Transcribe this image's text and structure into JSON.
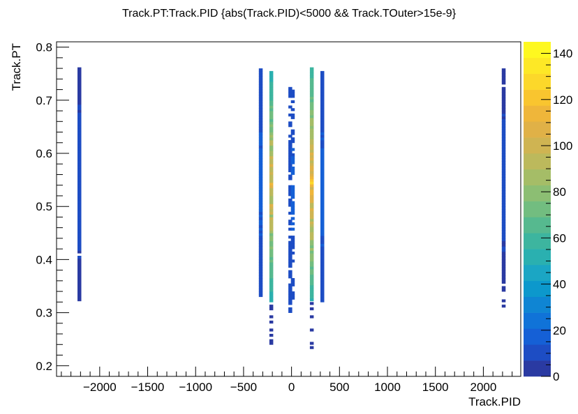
{
  "chart_data": {
    "type": "heatmap",
    "title": "Track.PT:Track.PID {abs(Track.PID)<5000 && Track.TOuter>15e-9}",
    "xlabel": "Track.PID",
    "ylabel": "Track.PT",
    "xlim": [
      -2450,
      2390
    ],
    "ylim": [
      0.18,
      0.81
    ],
    "xticks": [
      -2000,
      -1500,
      -1000,
      -500,
      0,
      500,
      1000,
      1500,
      2000
    ],
    "xtick_labels": [
      "−2000",
      "−1500",
      "−1000",
      "−500",
      "0",
      "500",
      "1000",
      "1500",
      "2000"
    ],
    "yticks": [
      0.2,
      0.3,
      0.4,
      0.5,
      0.6,
      0.7,
      0.8
    ],
    "ytick_labels": [
      "0.2",
      "0.3",
      "0.4",
      "0.5",
      "0.6",
      "0.7",
      "0.8"
    ],
    "colorbar": {
      "range": [
        0,
        145
      ],
      "ticks": [
        0,
        20,
        40,
        60,
        80,
        100,
        120,
        140
      ],
      "tick_labels": [
        "0",
        "20",
        "40",
        "60",
        "80",
        "100",
        "120",
        "140"
      ],
      "colors": [
        "#2a3aa2",
        "#1d4dc4",
        "#1560d6",
        "#1073d8",
        "#0f85d3",
        "#0c98cc",
        "#1ba6c4",
        "#2ab0b0",
        "#3db59f",
        "#56b98f",
        "#72bd80",
        "#8cbe73",
        "#a5bd67",
        "#bcb95c",
        "#cfb452",
        "#e0b147",
        "#efb63a",
        "#f9c52f",
        "#fcd82a",
        "#fde826",
        "#fef820"
      ],
      "grid": false
    },
    "cell_size": {
      "x": 40,
      "y": 0.005
    },
    "columns": [
      {
        "pid": -2212,
        "pt": [
          0.322,
          0.76
        ],
        "base": 5,
        "peak": 10,
        "gaps": [
          0.405,
          0.411
        ]
      },
      {
        "pid": -321,
        "pt": [
          0.33,
          0.758
        ],
        "base": 8,
        "peak": 18,
        "gaps": []
      },
      {
        "pid": -211,
        "pt": [
          0.32,
          0.752
        ],
        "base": 50,
        "peak": 105,
        "gaps": [],
        "tail": [
          0.305,
          0.31,
          0.29,
          0.28,
          0.265,
          0.255,
          0.245,
          0.24
        ]
      },
      {
        "pid": -13,
        "pt": [
          0.3,
          0.722
        ],
        "base": 8,
        "peak": 12,
        "sparse": true
      },
      {
        "pid": 13,
        "pt": [
          0.325,
          0.72
        ],
        "base": 10,
        "peak": 16,
        "sparse": true
      },
      {
        "pid": 211,
        "pt": [
          0.322,
          0.762
        ],
        "base": 55,
        "peak": 112,
        "gaps": [],
        "tail": [
          0.315,
          0.305,
          0.29,
          0.265,
          0.24,
          0.232
        ]
      },
      {
        "pid": 321,
        "pt": [
          0.32,
          0.752
        ],
        "base": 9,
        "peak": 18,
        "gaps": []
      },
      {
        "pid": 2212,
        "pt": [
          0.34,
          0.76
        ],
        "base": 5,
        "peak": 10,
        "gaps": [
          0.722,
          0.727,
          0.348,
          0.353
        ],
        "tail": [
          0.32,
          0.31
        ]
      }
    ]
  }
}
